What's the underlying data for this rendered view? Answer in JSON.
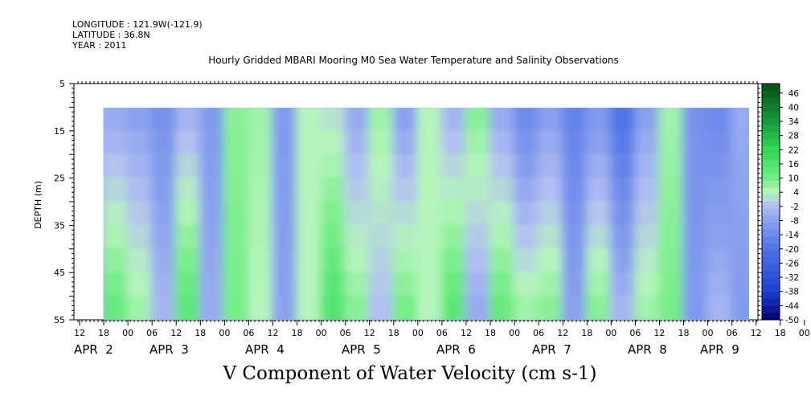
{
  "header": {
    "longitude": "LONGITUDE : 121.9W(-121.9)",
    "latitude": "LATITUDE : 36.8N",
    "year": "YEAR : 2011",
    "title": "Hourly Gridded MBARI Mooring M0 Sea Water Temperature and Salinity Observations"
  },
  "chart_data": {
    "type": "heatmap",
    "title": "V Component of Water Velocity (cm s-1)",
    "ylabel": "DEPTH (m)",
    "xlabel": "",
    "ylim": [
      5,
      55
    ],
    "y_inverted": true,
    "y_ticks": [
      "5",
      "15",
      "25",
      "35",
      "45",
      "55"
    ],
    "x_hour_ticks": [
      "12",
      "18",
      "00",
      "06",
      "12",
      "18",
      "00",
      "06",
      "12",
      "18",
      "00",
      "06",
      "12",
      "18",
      "00",
      "06",
      "12",
      "18",
      "00",
      "06",
      "12",
      "18",
      "00",
      "06",
      "12",
      "18",
      "00",
      "06",
      "12",
      "18",
      "00",
      "06"
    ],
    "x_day_labels": [
      "APR  2",
      "APR  3",
      "APR  4",
      "APR  5",
      "APR  6",
      "APR  7",
      "APR  8",
      "APR  9"
    ],
    "data_depth_range": [
      10,
      55
    ],
    "data_start": "APR 1 18:00",
    "data_end": "APR 9 12:00",
    "colorbar_labels": [
      "46",
      "40",
      "34",
      "28",
      "22",
      "16",
      "10",
      "4",
      "-2",
      "-8",
      "-14",
      "-20",
      "-26",
      "-32",
      "-38",
      "-44",
      "-50"
    ],
    "colorbar_range": [
      -50,
      50
    ],
    "colors": {
      "strong_negative": "#000080",
      "negative": "#6f8ce8",
      "near_zero": "#a8b8f0",
      "positive": "#7af08c",
      "strong_positive": "#0c5a1e"
    },
    "bands": [
      {
        "time": "APR 1 18:00",
        "surface": -6,
        "bottom": 12
      },
      {
        "time": "APR 2 00:00",
        "surface": -8,
        "bottom": 6
      },
      {
        "time": "APR 2 06:00",
        "surface": -12,
        "bottom": -4
      },
      {
        "time": "APR 2 12:00",
        "surface": -4,
        "bottom": 14
      },
      {
        "time": "APR 2 18:00",
        "surface": -10,
        "bottom": -6
      },
      {
        "time": "APR 3 00:00",
        "surface": 8,
        "bottom": 10
      },
      {
        "time": "APR 3 06:00",
        "surface": 6,
        "bottom": 4
      },
      {
        "time": "APR 3 12:00",
        "surface": -10,
        "bottom": -8
      },
      {
        "time": "APR 3 18:00",
        "surface": 4,
        "bottom": 4
      },
      {
        "time": "APR 4 00:00",
        "surface": 2,
        "bottom": 16
      },
      {
        "time": "APR 4 06:00",
        "surface": -6,
        "bottom": 8
      },
      {
        "time": "APR 4 12:00",
        "surface": 6,
        "bottom": -2
      },
      {
        "time": "APR 4 18:00",
        "surface": -8,
        "bottom": 10
      },
      {
        "time": "APR 5 00:00",
        "surface": 4,
        "bottom": 4
      },
      {
        "time": "APR 5 06:00",
        "surface": -4,
        "bottom": 14
      },
      {
        "time": "APR 5 12:00",
        "surface": 8,
        "bottom": -6
      },
      {
        "time": "APR 5 18:00",
        "surface": -6,
        "bottom": 12
      },
      {
        "time": "APR 6 00:00",
        "surface": -14,
        "bottom": 6
      },
      {
        "time": "APR 6 06:00",
        "surface": -8,
        "bottom": 8
      },
      {
        "time": "APR 6 12:00",
        "surface": -16,
        "bottom": -8
      },
      {
        "time": "APR 6 18:00",
        "surface": -10,
        "bottom": 8
      },
      {
        "time": "APR 7 00:00",
        "surface": -20,
        "bottom": -4
      },
      {
        "time": "APR 7 06:00",
        "surface": -8,
        "bottom": 6
      },
      {
        "time": "APR 7 12:00",
        "surface": 6,
        "bottom": 10
      },
      {
        "time": "APR 7 18:00",
        "surface": -12,
        "bottom": -10
      },
      {
        "time": "APR 8 00:00",
        "surface": -14,
        "bottom": -4
      },
      {
        "time": "APR 8 06:00",
        "surface": -6,
        "bottom": -10
      },
      {
        "time": "APR 8 12:00",
        "surface": -10,
        "bottom": 12
      },
      {
        "time": "APR 8 18:00",
        "surface": -12,
        "bottom": -2
      },
      {
        "time": "APR 9 00:00",
        "surface": 4,
        "bottom": -6
      },
      {
        "time": "APR 9 06:00",
        "surface": 6,
        "bottom": -8
      },
      {
        "time": "APR 9 12:00",
        "surface": 8,
        "bottom": -4
      }
    ]
  }
}
